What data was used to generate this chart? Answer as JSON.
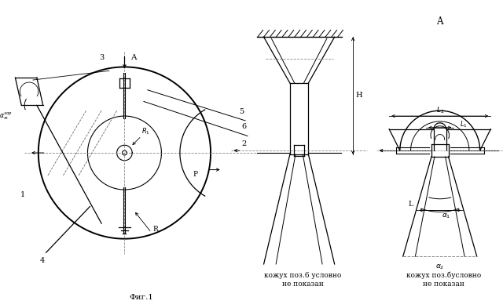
{
  "bg_color": "#ffffff",
  "fig_width": 6.4,
  "fig_height": 3.93,
  "dpi": 100,
  "title_bottom": "Фиг.1",
  "caption1_line1": "кожух поз.6 условно",
  "caption1_line2": "не показан",
  "caption2_line1": "кожух поз.бусловно",
  "caption2_line2": "не показан"
}
